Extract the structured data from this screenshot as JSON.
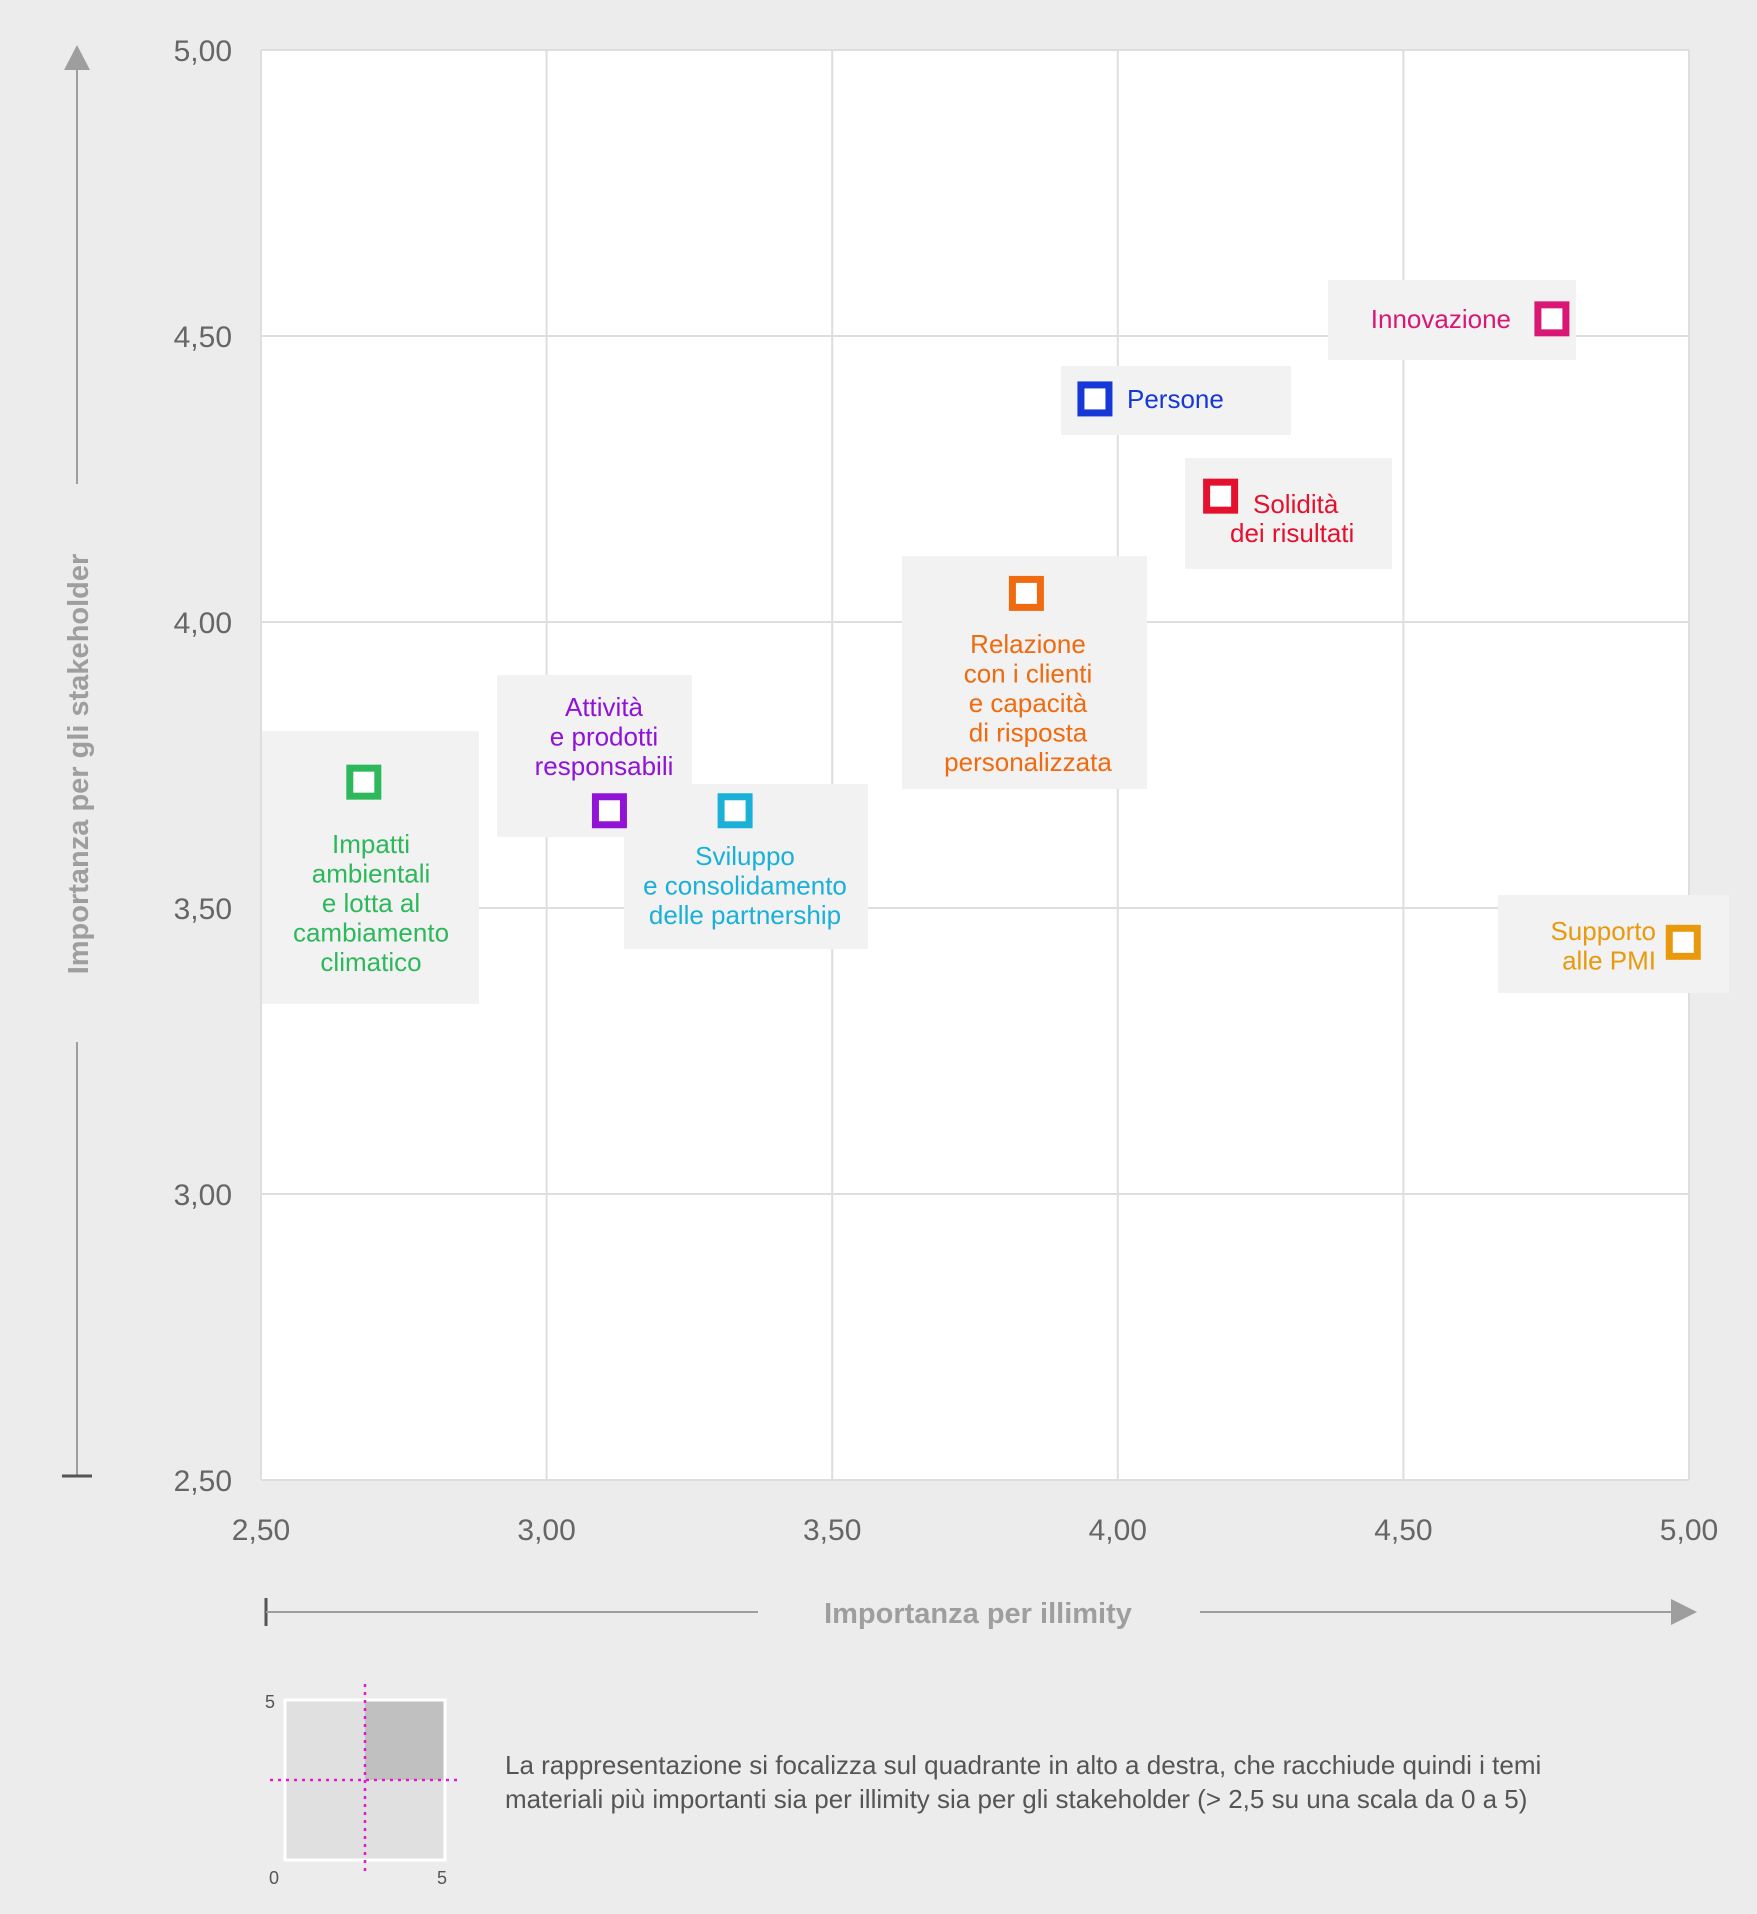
{
  "colors": {
    "background": "#ececec",
    "plot_bg": "#ffffff",
    "grid": "#dedede",
    "tick_text": "#666666",
    "axis_title": "#9e9e9e",
    "label_box": "#f2f2f2"
  },
  "chart_data": {
    "type": "scatter",
    "xlabel": "Importanza per illimity",
    "ylabel": "Importanza per gli stakeholder",
    "xlim": [
      2.5,
      5.0
    ],
    "ylim": [
      2.5,
      5.0
    ],
    "x_ticks": [
      "2,50",
      "3,00",
      "3,50",
      "4,00",
      "4,50",
      "5,00"
    ],
    "y_ticks": [
      "2,50",
      "3,00",
      "3,50",
      "4,00",
      "4,50",
      "5,00"
    ],
    "grid": true,
    "points": [
      {
        "id": "impatti",
        "label": [
          "Impatti",
          "ambientali",
          "e lotta al",
          "cambiamento",
          "climatico"
        ],
        "x": 2.68,
        "y": 3.72,
        "color": "#2db85c"
      },
      {
        "id": "attivita",
        "label": [
          "Attività",
          "e prodotti",
          "responsabili"
        ],
        "x": 3.11,
        "y": 3.67,
        "color": "#9013d6"
      },
      {
        "id": "sviluppo",
        "label": [
          "Sviluppo",
          "e consolidamento",
          "delle partnership"
        ],
        "x": 3.33,
        "y": 3.67,
        "color": "#1ab0d8"
      },
      {
        "id": "relazione",
        "label": [
          "Relazione",
          "con i clienti",
          "e capacità",
          "di risposta",
          "personalizzata"
        ],
        "x": 3.84,
        "y": 4.05,
        "color": "#f06a0f"
      },
      {
        "id": "persone",
        "label": [
          "Persone"
        ],
        "x": 3.96,
        "y": 4.39,
        "color": "#1638d8"
      },
      {
        "id": "solidita",
        "label": [
          "Solidità",
          "dei risultati"
        ],
        "x": 4.18,
        "y": 4.22,
        "color": "#e4112e"
      },
      {
        "id": "innovazione",
        "label": [
          "Innovazione"
        ],
        "x": 4.76,
        "y": 4.53,
        "color": "#d91775"
      },
      {
        "id": "supporto",
        "label": [
          "Supporto",
          "alle PMI"
        ],
        "x": 4.99,
        "y": 3.44,
        "color": "#e89a0c"
      }
    ]
  },
  "legend": {
    "axis_max_label": "5",
    "axis_min_label": "0",
    "axis_x_max_label": "5",
    "text_line1": "La rappresentazione si focalizza sul quadrante in alto a destra, che racchiude quindi i temi",
    "text_line2": "materiali più importanti sia per illimity sia per gli stakeholder (> 2,5 su una scala da 0 a 5)"
  }
}
